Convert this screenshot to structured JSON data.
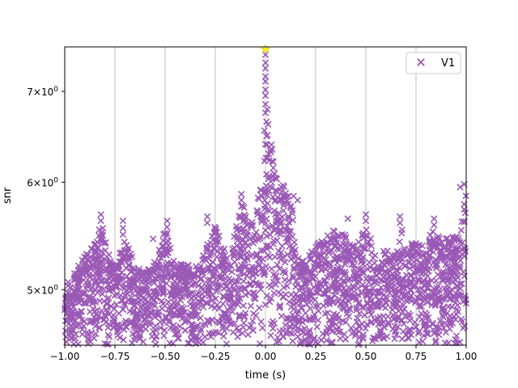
{
  "chart_data": {
    "type": "scatter",
    "title": "",
    "xlabel": "time (s)",
    "ylabel": "snr",
    "xlim": [
      -1.0,
      1.0
    ],
    "ylim": [
      4.55,
      7.55
    ],
    "yscale": "log",
    "grid": {
      "x": true,
      "y": false
    },
    "legend_position": "top-right",
    "x_ticks": [
      {
        "value": -1.0,
        "label": "−1.00"
      },
      {
        "value": -0.75,
        "label": "−0.75"
      },
      {
        "value": -0.5,
        "label": "−0.50"
      },
      {
        "value": -0.25,
        "label": "−0.25"
      },
      {
        "value": 0.0,
        "label": "0.00"
      },
      {
        "value": 0.25,
        "label": "0.25"
      },
      {
        "value": 0.5,
        "label": "0.50"
      },
      {
        "value": 0.75,
        "label": "0.75"
      },
      {
        "value": 1.0,
        "label": "1.00"
      }
    ],
    "y_ticks": [
      {
        "value": 5,
        "base": "5",
        "exp": "0"
      },
      {
        "value": 6,
        "base": "6",
        "exp": "0"
      },
      {
        "value": 7,
        "base": "7",
        "exp": "0"
      }
    ],
    "series": [
      {
        "name": "V1",
        "color": "#9b59b6",
        "marker": "x",
        "envelope": [
          [
            -1.0,
            5.05
          ],
          [
            -0.95,
            5.15
          ],
          [
            -0.9,
            5.3
          ],
          [
            -0.85,
            5.42
          ],
          [
            -0.83,
            5.6
          ],
          [
            -0.8,
            5.45
          ],
          [
            -0.75,
            5.2
          ],
          [
            -0.72,
            5.35
          ],
          [
            -0.7,
            5.5
          ],
          [
            -0.65,
            5.2
          ],
          [
            -0.6,
            5.15
          ],
          [
            -0.55,
            5.25
          ],
          [
            -0.5,
            5.55
          ],
          [
            -0.45,
            5.2
          ],
          [
            -0.4,
            5.25
          ],
          [
            -0.35,
            5.2
          ],
          [
            -0.3,
            5.35
          ],
          [
            -0.25,
            5.6
          ],
          [
            -0.22,
            5.45
          ],
          [
            -0.18,
            5.2
          ],
          [
            -0.15,
            5.55
          ],
          [
            -0.12,
            5.85
          ],
          [
            -0.08,
            5.55
          ],
          [
            -0.05,
            5.8
          ],
          [
            -0.02,
            6.0
          ],
          [
            0.0,
            6.3
          ],
          [
            0.01,
            6.8
          ],
          [
            0.02,
            6.35
          ],
          [
            0.03,
            6.4
          ],
          [
            0.05,
            6.05
          ],
          [
            0.07,
            6.0
          ],
          [
            0.1,
            5.95
          ],
          [
            0.13,
            5.85
          ],
          [
            0.15,
            5.3
          ],
          [
            0.2,
            5.25
          ],
          [
            0.25,
            5.4
          ],
          [
            0.3,
            5.45
          ],
          [
            0.35,
            5.55
          ],
          [
            0.4,
            5.5
          ],
          [
            0.45,
            5.35
          ],
          [
            0.5,
            5.6
          ],
          [
            0.55,
            5.3
          ],
          [
            0.6,
            5.35
          ],
          [
            0.65,
            5.3
          ],
          [
            0.68,
            5.55
          ],
          [
            0.7,
            5.35
          ],
          [
            0.75,
            5.45
          ],
          [
            0.8,
            5.35
          ],
          [
            0.83,
            5.55
          ],
          [
            0.87,
            5.5
          ],
          [
            0.92,
            5.45
          ],
          [
            0.95,
            5.5
          ],
          [
            0.98,
            5.65
          ],
          [
            1.0,
            5.95
          ]
        ],
        "spikes": [
          [
            -0.82,
            5.68
          ],
          [
            -0.82,
            5.62
          ],
          [
            -0.81,
            5.55
          ],
          [
            -0.71,
            5.62
          ],
          [
            -0.71,
            5.55
          ],
          [
            -0.71,
            5.49
          ],
          [
            -0.56,
            5.45
          ],
          [
            -0.49,
            5.62
          ],
          [
            -0.49,
            5.56
          ],
          [
            -0.49,
            5.5
          ],
          [
            -0.29,
            5.66
          ],
          [
            -0.29,
            5.6
          ],
          [
            -0.12,
            5.88
          ],
          [
            -0.12,
            5.82
          ],
          [
            -0.12,
            5.76
          ],
          [
            0.16,
            5.82
          ],
          [
            0.14,
            5.86
          ],
          [
            0.31,
            5.48
          ],
          [
            0.41,
            5.64
          ],
          [
            0.5,
            5.68
          ],
          [
            0.5,
            5.62
          ],
          [
            0.67,
            5.66
          ],
          [
            0.67,
            5.6
          ],
          [
            0.84,
            5.64
          ],
          [
            0.84,
            5.58
          ],
          [
            0.97,
            5.95
          ],
          [
            0.99,
            5.98
          ],
          [
            0.99,
            5.73
          ],
          [
            0.99,
            5.78
          ],
          [
            0.0,
            7.45
          ],
          [
            0.0,
            7.35
          ],
          [
            0.0,
            7.28
          ],
          [
            0.0,
            7.18
          ],
          [
            0.0,
            7.12
          ],
          [
            0.0,
            7.02
          ],
          [
            0.0,
            6.95
          ],
          [
            0.0,
            6.85
          ],
          [
            0.0,
            6.75
          ],
          [
            0.005,
            6.65
          ],
          [
            -0.005,
            6.55
          ],
          [
            0.01,
            6.5
          ],
          [
            0.0,
            6.4
          ]
        ]
      }
    ],
    "highlight_points": [
      {
        "x": 0.0,
        "y": 7.52,
        "marker": "star",
        "color": "#ffee22"
      }
    ]
  }
}
